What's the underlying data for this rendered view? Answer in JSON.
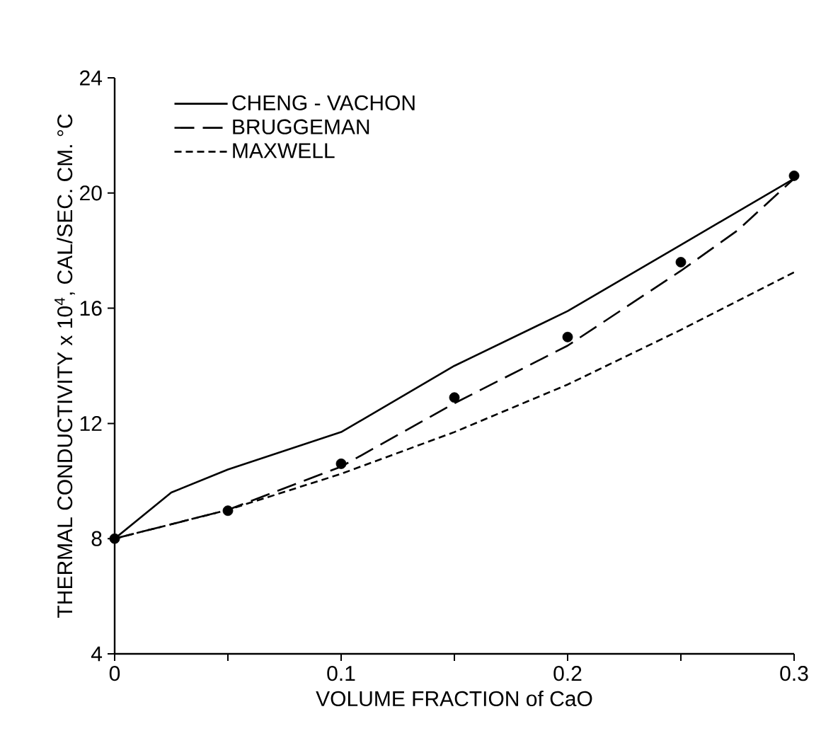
{
  "chart_data": {
    "type": "line",
    "xlabel": "VOLUME FRACTION of CaO",
    "ylabel": "THERMAL CONDUCTIVITY x 10$^{4}$, CAL/SEC. CM. °C",
    "xlim": [
      0,
      0.3
    ],
    "ylim": [
      4,
      24
    ],
    "xticks": [
      0,
      {
        "value": 0.05,
        "label": null
      },
      0.1,
      {
        "value": 0.15,
        "label": null
      },
      0.2,
      {
        "value": 0.25,
        "label": null
      },
      0.3
    ],
    "yticks": [
      4,
      8,
      12,
      16,
      20,
      24
    ],
    "grid": false,
    "legend": "top left",
    "series": [
      {
        "name": "CHENG - VACHON",
        "line_style": "solid",
        "marker": "none",
        "color": "#000000",
        "x": [
          0,
          0.025,
          0.05,
          0.1,
          0.15,
          0.2,
          0.25,
          0.3
        ],
        "values": [
          8,
          9.6,
          10.4,
          11.7,
          14.0,
          15.9,
          18.2,
          20.5
        ]
      },
      {
        "name": "BRUGGEMAN",
        "line_style": "dashed",
        "marker": "none",
        "color": "#000000",
        "x": [
          0,
          0.05,
          0.1,
          0.15,
          0.2,
          0.25,
          0.275,
          0.3
        ],
        "values": [
          8,
          9.0,
          10.5,
          12.7,
          14.7,
          17.3,
          18.7,
          20.5
        ]
      },
      {
        "name": "MAXWELL",
        "line_style": "dotted",
        "marker": "none",
        "color": "#000000",
        "x": [
          0,
          0.05,
          0.1,
          0.15,
          0.2,
          0.25,
          0.3
        ],
        "values": [
          8,
          9.0,
          10.25,
          11.7,
          13.35,
          15.25,
          17.25
        ]
      },
      {
        "type": "scatter",
        "marker": "circle",
        "color": "#000000",
        "x": [
          0,
          0.05,
          0.1,
          0.15,
          0.2,
          0.25,
          0.3
        ],
        "values": [
          8,
          8.97,
          10.6,
          12.9,
          15.0,
          17.6,
          20.6
        ]
      }
    ]
  }
}
